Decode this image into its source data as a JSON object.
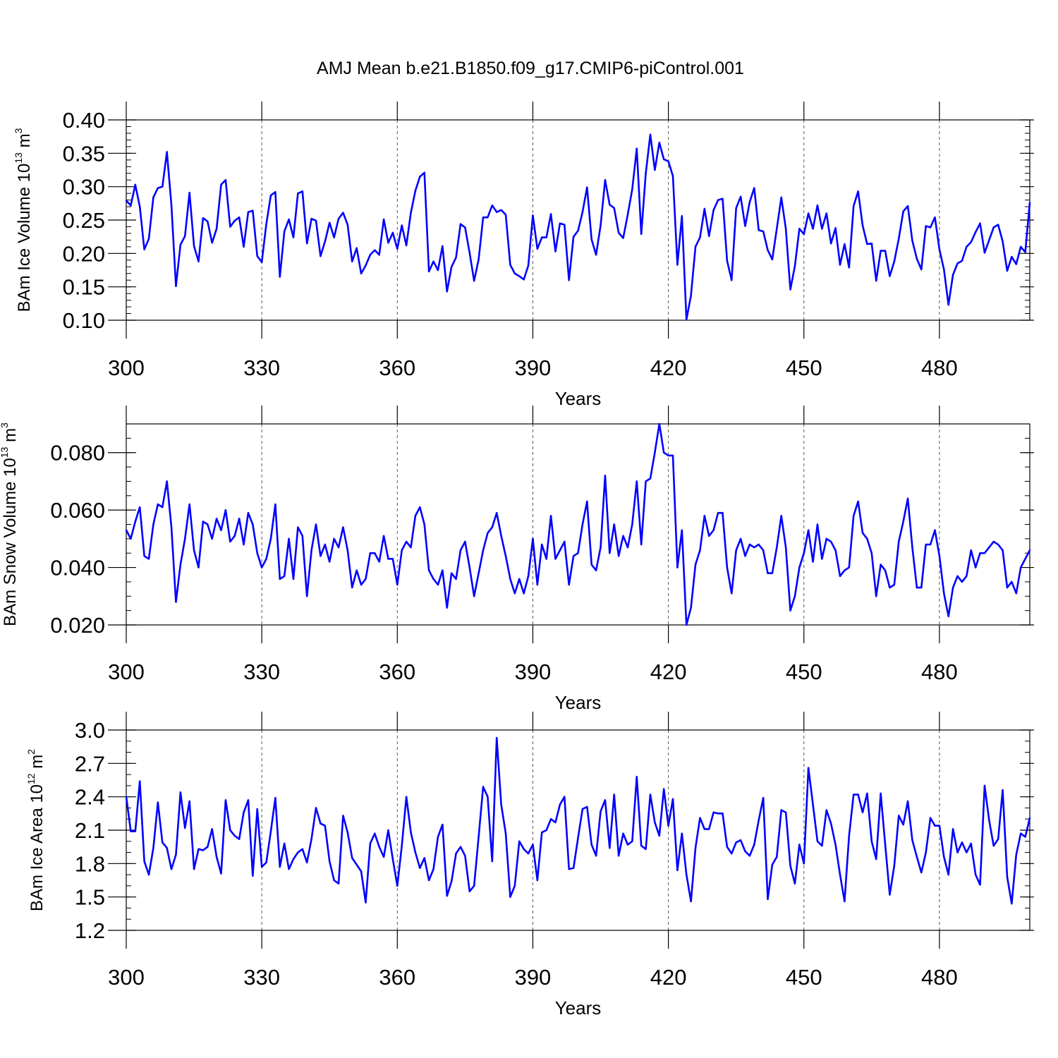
{
  "chart_data": {
    "type": "line",
    "title": "AMJ Mean b.e21.B1850.f09_g17.CMIP6-piControl.001",
    "x": {
      "start": 300,
      "end": 500,
      "xlim": [
        300,
        500
      ],
      "ticks": [
        300,
        330,
        360,
        390,
        420,
        450,
        480
      ],
      "tick_labels": [
        "300",
        "330",
        "360",
        "390",
        "420",
        "450",
        "480"
      ],
      "grid": "dashed vertical lines at major ticks"
    },
    "panels": [
      {
        "name": "ice-volume",
        "xlabel": "Years",
        "ylabel": {
          "text": "BAm Ice Volume 10",
          "exp": "13",
          "unit": " m",
          "unit_exp": "3"
        },
        "ylim": [
          0.1,
          0.4
        ],
        "yticks": [
          0.1,
          0.15,
          0.2,
          0.25,
          0.3,
          0.35,
          0.4
        ],
        "ytick_labels": [
          "0.10",
          "0.15",
          "0.20",
          "0.25",
          "0.30",
          "0.35",
          "0.40"
        ],
        "y_minor_step": 0.01,
        "color": "#0000ff",
        "values": [
          0.279,
          0.272,
          0.303,
          0.27,
          0.206,
          0.222,
          0.284,
          0.298,
          0.3,
          0.352,
          0.272,
          0.151,
          0.213,
          0.226,
          0.291,
          0.211,
          0.188,
          0.253,
          0.248,
          0.216,
          0.237,
          0.303,
          0.31,
          0.24,
          0.249,
          0.254,
          0.21,
          0.262,
          0.264,
          0.196,
          0.187,
          0.244,
          0.287,
          0.292,
          0.165,
          0.233,
          0.251,
          0.224,
          0.29,
          0.293,
          0.215,
          0.252,
          0.249,
          0.196,
          0.218,
          0.246,
          0.224,
          0.252,
          0.261,
          0.243,
          0.188,
          0.208,
          0.17,
          0.182,
          0.198,
          0.205,
          0.198,
          0.251,
          0.216,
          0.231,
          0.207,
          0.242,
          0.212,
          0.261,
          0.294,
          0.315,
          0.321,
          0.173,
          0.188,
          0.175,
          0.211,
          0.143,
          0.18,
          0.194,
          0.244,
          0.239,
          0.201,
          0.159,
          0.191,
          0.254,
          0.254,
          0.272,
          0.262,
          0.265,
          0.258,
          0.183,
          0.17,
          0.166,
          0.161,
          0.182,
          0.257,
          0.207,
          0.224,
          0.224,
          0.259,
          0.203,
          0.245,
          0.243,
          0.16,
          0.225,
          0.234,
          0.262,
          0.299,
          0.221,
          0.198,
          0.242,
          0.31,
          0.273,
          0.268,
          0.231,
          0.223,
          0.258,
          0.296,
          0.357,
          0.229,
          0.32,
          0.378,
          0.325,
          0.366,
          0.341,
          0.338,
          0.316,
          0.183,
          0.256,
          0.101,
          0.137,
          0.21,
          0.224,
          0.267,
          0.226,
          0.265,
          0.28,
          0.282,
          0.189,
          0.16,
          0.268,
          0.285,
          0.241,
          0.277,
          0.298,
          0.235,
          0.233,
          0.205,
          0.191,
          0.237,
          0.284,
          0.237,
          0.146,
          0.181,
          0.237,
          0.229,
          0.26,
          0.237,
          0.272,
          0.237,
          0.26,
          0.215,
          0.238,
          0.183,
          0.214,
          0.179,
          0.271,
          0.293,
          0.242,
          0.214,
          0.215,
          0.159,
          0.204,
          0.204,
          0.166,
          0.188,
          0.222,
          0.263,
          0.271,
          0.219,
          0.192,
          0.176,
          0.241,
          0.239,
          0.254,
          0.206,
          0.176,
          0.123,
          0.168,
          0.185,
          0.189,
          0.21,
          0.217,
          0.232,
          0.245,
          0.201,
          0.22,
          0.239,
          0.243,
          0.218,
          0.174,
          0.195,
          0.184,
          0.21,
          0.202,
          0.276
        ]
      },
      {
        "name": "snow-volume",
        "xlabel": "Years",
        "ylabel": {
          "text": "BAm Snow Volume 10",
          "exp": "13",
          "unit": " m",
          "unit_exp": "3"
        },
        "ylim": [
          0.02,
          0.09
        ],
        "yticks": [
          0.02,
          0.04,
          0.06,
          0.08
        ],
        "ytick_labels": [
          "0.020",
          "0.040",
          "0.060",
          "0.080"
        ],
        "y_minor_step": 0.005,
        "color": "#0000ff",
        "values": [
          0.053,
          0.05,
          0.056,
          0.061,
          0.044,
          0.043,
          0.055,
          0.062,
          0.061,
          0.07,
          0.054,
          0.028,
          0.041,
          0.05,
          0.062,
          0.046,
          0.04,
          0.056,
          0.055,
          0.05,
          0.057,
          0.053,
          0.06,
          0.049,
          0.051,
          0.057,
          0.048,
          0.059,
          0.055,
          0.045,
          0.04,
          0.043,
          0.05,
          0.062,
          0.036,
          0.037,
          0.05,
          0.036,
          0.054,
          0.051,
          0.03,
          0.046,
          0.055,
          0.044,
          0.048,
          0.042,
          0.05,
          0.047,
          0.054,
          0.046,
          0.033,
          0.039,
          0.034,
          0.036,
          0.045,
          0.045,
          0.042,
          0.051,
          0.043,
          0.043,
          0.034,
          0.046,
          0.049,
          0.047,
          0.058,
          0.061,
          0.055,
          0.039,
          0.036,
          0.034,
          0.039,
          0.026,
          0.038,
          0.036,
          0.046,
          0.049,
          0.04,
          0.03,
          0.038,
          0.046,
          0.052,
          0.054,
          0.059,
          0.051,
          0.044,
          0.036,
          0.031,
          0.036,
          0.031,
          0.037,
          0.05,
          0.034,
          0.048,
          0.043,
          0.058,
          0.043,
          0.046,
          0.049,
          0.034,
          0.044,
          0.045,
          0.055,
          0.063,
          0.041,
          0.039,
          0.047,
          0.072,
          0.045,
          0.055,
          0.044,
          0.051,
          0.047,
          0.055,
          0.07,
          0.048,
          0.07,
          0.071,
          0.08,
          0.09,
          0.08,
          0.079,
          0.079,
          0.04,
          0.053,
          0.02,
          0.026,
          0.041,
          0.046,
          0.058,
          0.051,
          0.053,
          0.059,
          0.059,
          0.04,
          0.031,
          0.046,
          0.05,
          0.044,
          0.048,
          0.047,
          0.048,
          0.046,
          0.038,
          0.038,
          0.047,
          0.058,
          0.047,
          0.025,
          0.03,
          0.04,
          0.045,
          0.053,
          0.042,
          0.055,
          0.043,
          0.05,
          0.049,
          0.046,
          0.037,
          0.039,
          0.04,
          0.058,
          0.063,
          0.052,
          0.05,
          0.045,
          0.03,
          0.041,
          0.039,
          0.033,
          0.034,
          0.049,
          0.056,
          0.064,
          0.047,
          0.033,
          0.033,
          0.048,
          0.048,
          0.053,
          0.044,
          0.031,
          0.023,
          0.033,
          0.037,
          0.035,
          0.037,
          0.046,
          0.04,
          0.045,
          0.045,
          0.047,
          0.049,
          0.048,
          0.046,
          0.033,
          0.035,
          0.031,
          0.04,
          0.043,
          0.046
        ]
      },
      {
        "name": "ice-area",
        "xlabel": "Years",
        "ylabel": {
          "text": "BAm Ice Area 10",
          "exp": "12",
          "unit": " m",
          "unit_exp": "2"
        },
        "ylim": [
          1.2,
          3.0
        ],
        "yticks": [
          1.2,
          1.5,
          1.8,
          2.1,
          2.4,
          2.7,
          3.0
        ],
        "ytick_labels": [
          "1.2",
          "1.5",
          "1.8",
          "2.1",
          "2.4",
          "2.7",
          "3.0"
        ],
        "y_minor_step": 0.1,
        "color": "#0000ff",
        "values": [
          2.4,
          2.09,
          2.09,
          2.54,
          1.82,
          1.7,
          1.94,
          2.35,
          1.99,
          1.94,
          1.75,
          1.88,
          2.44,
          2.12,
          2.36,
          1.75,
          1.93,
          1.92,
          1.95,
          2.11,
          1.86,
          1.71,
          2.37,
          2.1,
          2.05,
          2.02,
          2.26,
          2.37,
          1.69,
          2.29,
          1.77,
          1.81,
          2.09,
          2.39,
          1.77,
          1.98,
          1.75,
          1.84,
          1.9,
          1.93,
          1.81,
          2.02,
          2.3,
          2.16,
          2.14,
          1.82,
          1.65,
          1.62,
          2.23,
          2.08,
          1.85,
          1.79,
          1.73,
          1.45,
          1.98,
          2.07,
          1.95,
          1.86,
          2.1,
          1.84,
          1.6,
          1.96,
          2.4,
          2.08,
          1.9,
          1.76,
          1.85,
          1.65,
          1.75,
          2.04,
          2.15,
          1.51,
          1.64,
          1.89,
          1.95,
          1.87,
          1.55,
          1.6,
          2.04,
          2.49,
          2.4,
          1.82,
          2.93,
          2.33,
          2.07,
          1.5,
          1.6,
          2.0,
          1.93,
          1.89,
          1.97,
          1.65,
          2.08,
          2.1,
          2.2,
          2.17,
          2.33,
          2.4,
          1.75,
          1.76,
          2.03,
          2.29,
          2.31,
          1.97,
          1.87,
          2.27,
          2.37,
          1.94,
          2.42,
          1.87,
          2.07,
          1.97,
          2.0,
          2.58,
          1.96,
          1.93,
          2.42,
          2.17,
          2.05,
          2.47,
          2.14,
          2.38,
          1.74,
          2.07,
          1.7,
          1.46,
          1.94,
          2.21,
          2.11,
          2.11,
          2.26,
          2.25,
          2.25,
          1.95,
          1.89,
          1.99,
          2.01,
          1.91,
          1.87,
          1.97,
          2.19,
          2.39,
          1.48,
          1.79,
          1.86,
          2.28,
          2.26,
          1.78,
          1.62,
          1.97,
          1.8,
          2.66,
          2.33,
          2.0,
          1.96,
          2.28,
          2.16,
          1.97,
          1.7,
          1.46,
          2.05,
          2.42,
          2.42,
          2.26,
          2.43,
          2.0,
          1.84,
          2.43,
          1.97,
          1.52,
          1.78,
          2.23,
          2.15,
          2.36,
          2.01,
          1.86,
          1.72,
          1.9,
          2.21,
          2.14,
          2.14,
          1.86,
          1.7,
          2.11,
          1.9,
          1.99,
          1.9,
          1.98,
          1.7,
          1.61,
          2.5,
          2.19,
          1.96,
          2.02,
          2.46,
          1.68,
          1.44,
          1.88,
          2.07,
          2.04,
          2.21
        ]
      }
    ]
  }
}
